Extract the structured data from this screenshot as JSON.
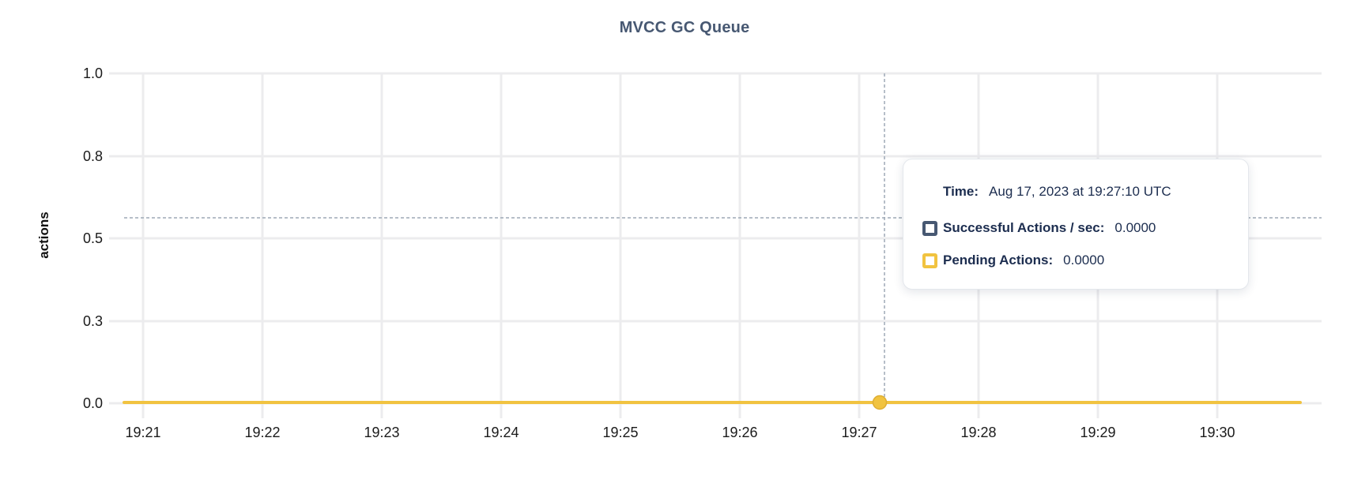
{
  "chart": {
    "title": "MVCC GC Queue",
    "ylabel": "actions"
  },
  "chart_data": {
    "type": "line",
    "title": "MVCC GC Queue",
    "xlabel": "",
    "ylabel": "actions",
    "x_ticks": [
      "19:21",
      "19:22",
      "19:23",
      "19:24",
      "19:25",
      "19:26",
      "19:27",
      "19:28",
      "19:29",
      "19:30"
    ],
    "y_ticks": [
      "1.0",
      "0.8",
      "0.5",
      "0.3",
      "0.0"
    ],
    "ylim": [
      0,
      1.0
    ],
    "grid": true,
    "legend_position": "tooltip-only",
    "series": [
      {
        "name": "Successful Actions / sec",
        "color": "#475872",
        "values": [
          0,
          0,
          0,
          0,
          0,
          0,
          0,
          0,
          0,
          0
        ]
      },
      {
        "name": "Pending Actions",
        "color": "#F1C340",
        "values": [
          0,
          0,
          0,
          0,
          0,
          0,
          0,
          0,
          0,
          0
        ]
      }
    ],
    "hover_time": "Aug 17, 2023 at 19:27:10 UTC"
  },
  "tooltip": {
    "time_label": "Time:",
    "time_value": "Aug 17, 2023 at 19:27:10 UTC",
    "rows": [
      {
        "label": "Successful Actions / sec:",
        "value": "0.0000",
        "color": "#475872"
      },
      {
        "label": "Pending Actions:",
        "value": "0.0000",
        "color": "#F1C340"
      }
    ]
  },
  "colors": {
    "title": "#475872",
    "grid": "#ECECEE",
    "axis_text": "#1B1B1B",
    "tooltip_text": "#1C2D4F",
    "crosshair": "#9DA9B5",
    "background": "#FFFFFF"
  }
}
